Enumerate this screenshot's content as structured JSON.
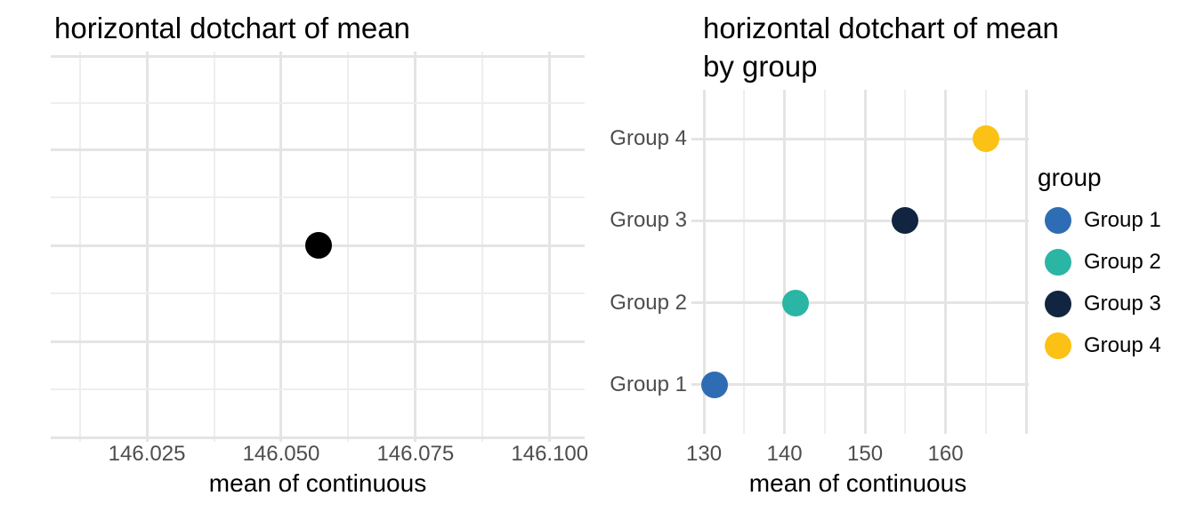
{
  "figure": {
    "background": "#ffffff",
    "title_color": "#000000",
    "tick_label_color": "#4d4d4d",
    "grid_major_color": "#e4e4e4",
    "grid_minor_color": "#eeeeee"
  },
  "chart_data": [
    {
      "type": "scatter",
      "variant": "horizontal-dotchart",
      "title": "horizontal dotchart of mean",
      "xlabel": "mean of continuous",
      "x_ticks": [
        146.025,
        146.05,
        146.075,
        146.1
      ],
      "x_tick_labels": [
        "146.025",
        "146.050",
        "146.075",
        "146.100"
      ],
      "x_minor_ticks": [
        146.0125,
        146.0375,
        146.0625,
        146.0875
      ],
      "xlim": [
        146.0071,
        146.1065
      ],
      "y_axis_labels": [],
      "grid": true,
      "legend_position": "none",
      "points": [
        {
          "label": "mean of continuous",
          "x": 146.057,
          "color": "#000000"
        }
      ]
    },
    {
      "type": "scatter",
      "variant": "horizontal-dotchart",
      "title": "horizontal dotchart of mean\nby group",
      "xlabel": "mean of continuous",
      "x_ticks": [
        130,
        140,
        150,
        160
      ],
      "x_tick_labels": [
        "130",
        "140",
        "150",
        "160"
      ],
      "x_minor_ticks": [
        135,
        145,
        155,
        165
      ],
      "x_edge_gridline": 170,
      "xlim": [
        128.45,
        170.33
      ],
      "categories": [
        "Group 1",
        "Group 2",
        "Group 3",
        "Group 4"
      ],
      "grid": true,
      "series": [
        {
          "name": "Group 1",
          "value": 131.3,
          "color": "#2E6DB4"
        },
        {
          "name": "Group 2",
          "value": 141.4,
          "color": "#2BB5A4"
        },
        {
          "name": "Group 3",
          "value": 155.0,
          "color": "#112440"
        },
        {
          "name": "Group 4",
          "value": 165.0,
          "color": "#FCC115"
        }
      ],
      "legend": {
        "title": "group",
        "position": "right",
        "entries": [
          {
            "label": "Group 1",
            "color": "#2E6DB4"
          },
          {
            "label": "Group 2",
            "color": "#2BB5A4"
          },
          {
            "label": "Group 3",
            "color": "#112440"
          },
          {
            "label": "Group 4",
            "color": "#FCC115"
          }
        ]
      }
    }
  ]
}
